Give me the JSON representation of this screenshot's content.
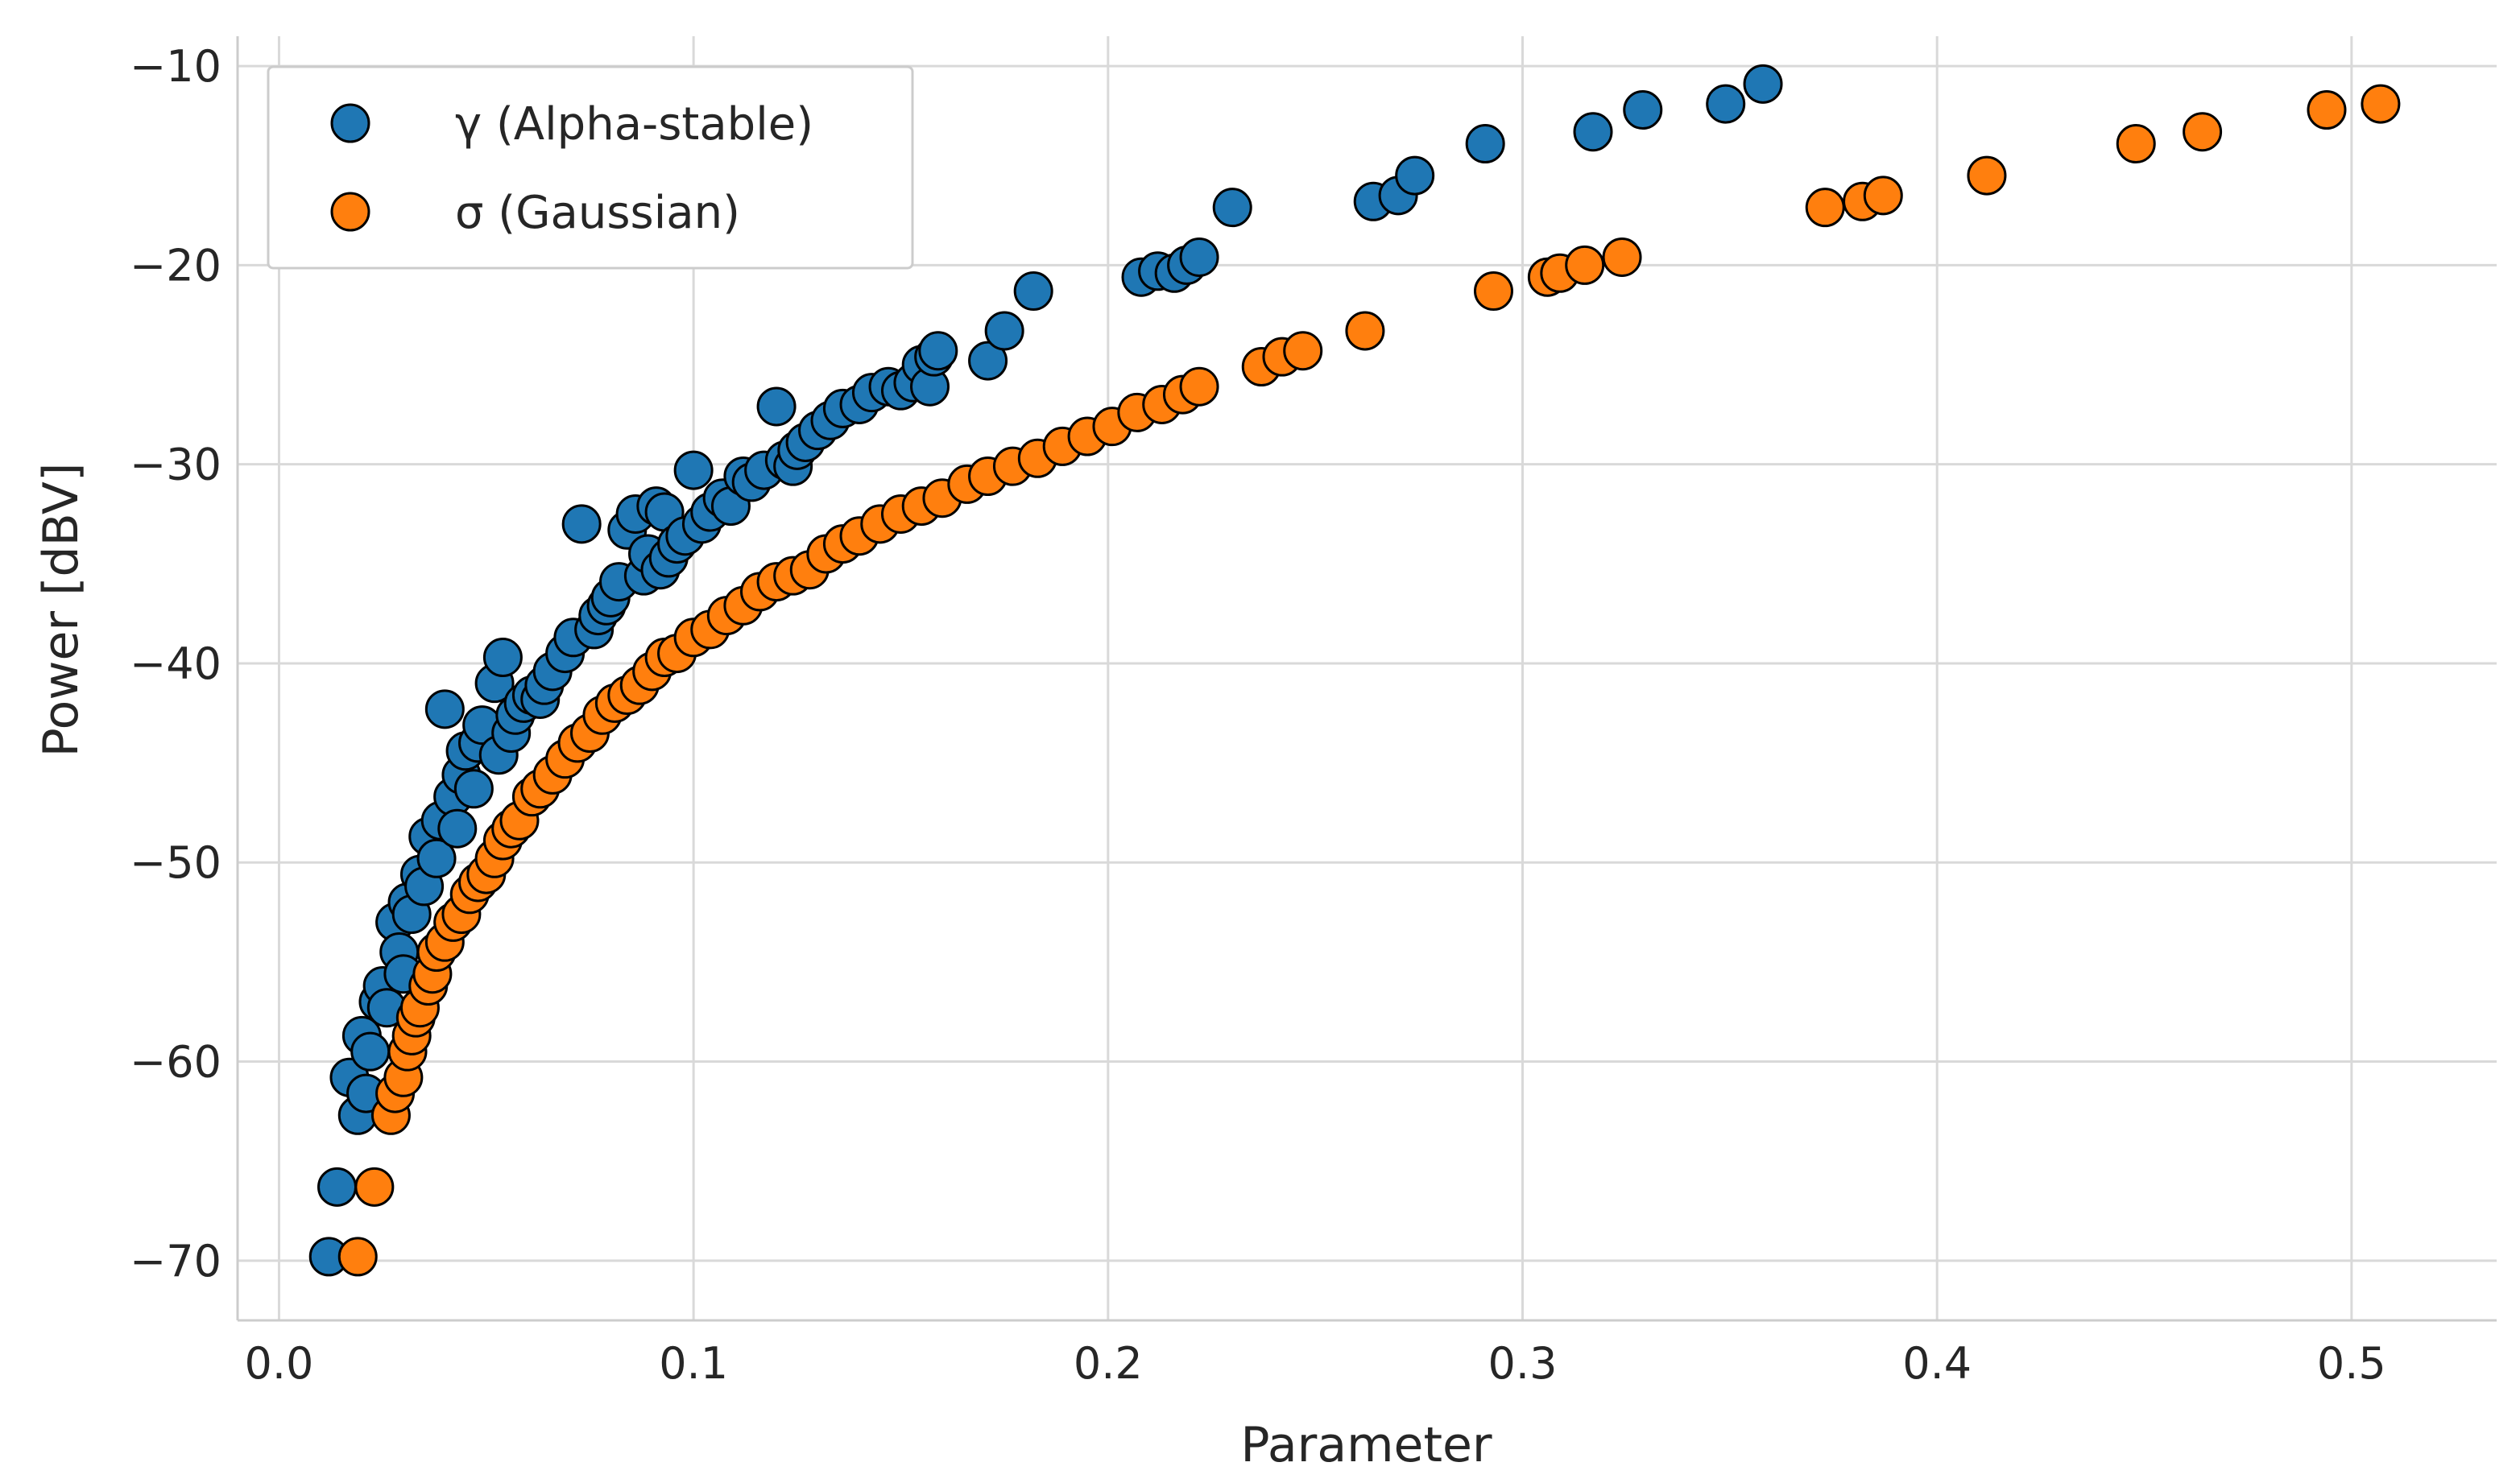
{
  "chart_data": {
    "type": "scatter",
    "title": "",
    "xlabel": "Parameter",
    "ylabel": "Power [dBV]",
    "xlim": [
      -0.01,
      0.535
    ],
    "ylim": [
      -73,
      -8.5
    ],
    "xticks": [
      "0.0",
      "0.1",
      "0.2",
      "0.3",
      "0.4",
      "0.5"
    ],
    "xtick_values": [
      0.0,
      0.1,
      0.2,
      0.3,
      0.4,
      0.5
    ],
    "yticks": [
      "−70",
      "−60",
      "−50",
      "−40",
      "−30",
      "−20",
      "−10"
    ],
    "ytick_values": [
      -70,
      -60,
      -50,
      -40,
      -30,
      -20,
      -10
    ],
    "grid": true,
    "legend_position": "top-left",
    "series": [
      {
        "name": "γ (Alpha-stable)",
        "color": "#1f77b4",
        "x": [
          0.012,
          0.014,
          0.017,
          0.019,
          0.02,
          0.021,
          0.022,
          0.024,
          0.025,
          0.026,
          0.028,
          0.029,
          0.03,
          0.031,
          0.032,
          0.034,
          0.035,
          0.036,
          0.038,
          0.039,
          0.04,
          0.042,
          0.043,
          0.044,
          0.045,
          0.047,
          0.048,
          0.049,
          0.052,
          0.053,
          0.054,
          0.056,
          0.057,
          0.059,
          0.061,
          0.063,
          0.064,
          0.066,
          0.069,
          0.071,
          0.073,
          0.076,
          0.077,
          0.079,
          0.08,
          0.082,
          0.084,
          0.086,
          0.088,
          0.089,
          0.091,
          0.092,
          0.093,
          0.094,
          0.096,
          0.098,
          0.1,
          0.102,
          0.104,
          0.107,
          0.109,
          0.112,
          0.114,
          0.117,
          0.12,
          0.122,
          0.124,
          0.125,
          0.127,
          0.13,
          0.133,
          0.136,
          0.14,
          0.143,
          0.147,
          0.15,
          0.153,
          0.155,
          0.157,
          0.158,
          0.159,
          0.171,
          0.175,
          0.182,
          0.208,
          0.212,
          0.216,
          0.219,
          0.222,
          0.23,
          0.264,
          0.27,
          0.274,
          0.291,
          0.317,
          0.329,
          0.349,
          0.358
        ],
        "y": [
          -69.8,
          -66.3,
          -60.8,
          -62.7,
          -58.7,
          -61.6,
          -59.5,
          -57.0,
          -56.2,
          -57.3,
          -53.0,
          -54.5,
          -55.6,
          -52.0,
          -52.6,
          -50.6,
          -51.2,
          -48.7,
          -49.8,
          -47.9,
          -42.3,
          -46.7,
          -48.3,
          -45.6,
          -44.4,
          -46.3,
          -44.0,
          -43.1,
          -41.0,
          -44.6,
          -39.7,
          -43.5,
          -42.6,
          -42.0,
          -41.6,
          -41.8,
          -41.1,
          -40.4,
          -39.5,
          -38.7,
          -33.0,
          -38.3,
          -37.6,
          -37.1,
          -36.7,
          -35.9,
          -33.3,
          -32.5,
          -35.6,
          -34.5,
          -32.1,
          -35.3,
          -32.4,
          -34.7,
          -34.0,
          -33.6,
          -30.3,
          -33.0,
          -32.4,
          -31.7,
          -32.1,
          -30.6,
          -30.9,
          -30.3,
          -27.1,
          -29.8,
          -30.1,
          -29.3,
          -28.9,
          -28.3,
          -27.8,
          -27.2,
          -27.0,
          -26.4,
          -26.1,
          -26.3,
          -25.9,
          -25.0,
          -26.1,
          -24.6,
          -24.3,
          -24.8,
          -23.3,
          -21.3,
          -20.6,
          -20.3,
          -20.4,
          -20.0,
          -19.6,
          -17.1,
          -16.8,
          -16.5,
          -15.5,
          -13.9,
          -13.3,
          -12.2,
          -11.9,
          -10.9
        ]
      },
      {
        "name": "σ (Gaussian)",
        "color": "#ff7f0e",
        "x": [
          0.019,
          0.023,
          0.027,
          0.028,
          0.03,
          0.031,
          0.032,
          0.033,
          0.034,
          0.036,
          0.037,
          0.038,
          0.04,
          0.042,
          0.044,
          0.046,
          0.048,
          0.05,
          0.052,
          0.054,
          0.056,
          0.058,
          0.061,
          0.063,
          0.066,
          0.069,
          0.072,
          0.075,
          0.078,
          0.081,
          0.084,
          0.087,
          0.09,
          0.093,
          0.096,
          0.1,
          0.104,
          0.108,
          0.112,
          0.116,
          0.12,
          0.124,
          0.128,
          0.132,
          0.136,
          0.14,
          0.145,
          0.15,
          0.155,
          0.16,
          0.166,
          0.171,
          0.177,
          0.183,
          0.189,
          0.195,
          0.201,
          0.207,
          0.213,
          0.218,
          0.222,
          0.237,
          0.242,
          0.247,
          0.262,
          0.293,
          0.306,
          0.309,
          0.315,
          0.324,
          0.373,
          0.382,
          0.387,
          0.412,
          0.448,
          0.464,
          0.494,
          0.507
        ],
        "y": [
          -69.8,
          -66.3,
          -62.7,
          -61.6,
          -60.8,
          -59.5,
          -58.7,
          -57.8,
          -57.3,
          -56.2,
          -55.6,
          -54.5,
          -54.0,
          -53.0,
          -52.6,
          -51.6,
          -51.0,
          -50.6,
          -49.8,
          -48.9,
          -48.3,
          -47.9,
          -46.7,
          -46.3,
          -45.6,
          -44.8,
          -44.0,
          -43.5,
          -42.6,
          -42.0,
          -41.6,
          -41.1,
          -40.4,
          -39.7,
          -39.5,
          -38.7,
          -38.3,
          -37.6,
          -37.1,
          -36.4,
          -35.9,
          -35.6,
          -35.3,
          -34.5,
          -34.0,
          -33.6,
          -33.0,
          -32.5,
          -32.1,
          -31.7,
          -31.0,
          -30.6,
          -30.1,
          -29.7,
          -29.1,
          -28.6,
          -28.1,
          -27.4,
          -27.0,
          -26.5,
          -26.1,
          -25.1,
          -24.6,
          -24.3,
          -23.3,
          -21.3,
          -20.6,
          -20.4,
          -20.0,
          -19.6,
          -17.1,
          -16.8,
          -16.5,
          -15.5,
          -13.9,
          -13.3,
          -12.2,
          -11.9
        ]
      }
    ]
  }
}
